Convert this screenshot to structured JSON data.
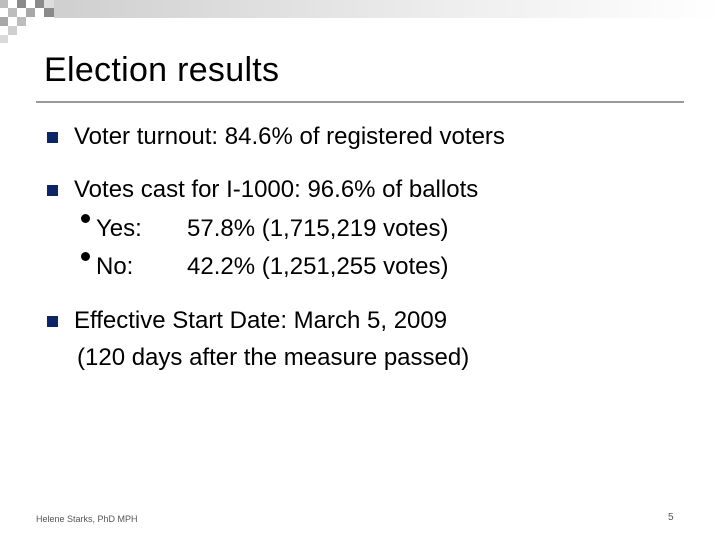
{
  "slide": {
    "title": "Election results",
    "bullets": [
      {
        "text": "Voter turnout: 84.6% of registered voters"
      },
      {
        "text": "Votes cast for I-1000: 96.6% of ballots",
        "sub": [
          {
            "label": "Yes:",
            "value": "57.8% (1,715,219 votes)"
          },
          {
            "label": "No:",
            "value": "42.2% (1,251,255 votes)"
          }
        ]
      },
      {
        "text": "Effective Start Date:  March 5, 2009",
        "continuation": "(120 days after the measure passed)"
      }
    ]
  },
  "footer": {
    "author": "Helene Starks, PhD MPH",
    "page_number": "5"
  },
  "colors": {
    "bullet": "#0c2566",
    "rule": "#999999",
    "deco_dark": "#8a8a8a",
    "deco_light": "#d9d9d9"
  }
}
